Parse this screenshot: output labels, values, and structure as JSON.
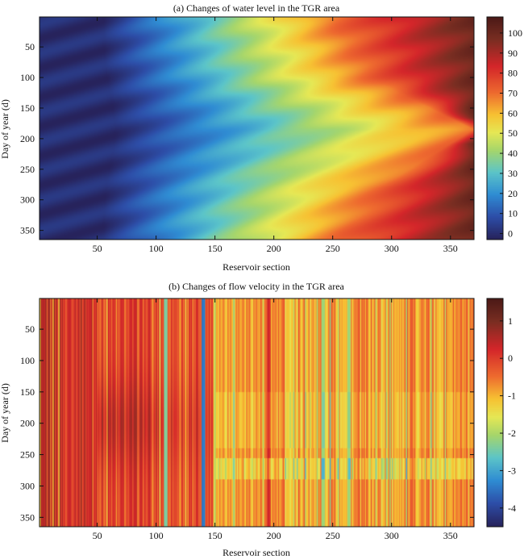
{
  "chart_data": [
    {
      "type": "heatmap",
      "title": "(a) Changes of water level in the TGR area",
      "xlabel": "Reservoir section",
      "ylabel": "Day of year (d)",
      "xlim": [
        1,
        370
      ],
      "ylim": [
        1,
        365
      ],
      "xticks": [
        50,
        100,
        150,
        200,
        250,
        300,
        350
      ],
      "yticks": [
        50,
        100,
        150,
        200,
        250,
        300,
        350
      ],
      "colorbar": {
        "min": -3,
        "max": 108,
        "ticks": [
          0,
          10,
          20,
          30,
          40,
          50,
          60,
          70,
          80,
          90,
          100
        ],
        "colormap": "jet-dark"
      },
      "value_field": {
        "description": "water level increases from upstream to downstream sections, spreading furthest around mid-year",
        "front_profile": [
          {
            "day": 1,
            "boundary_section": 250
          },
          {
            "day": 100,
            "boundary_section": 280
          },
          {
            "day": 185,
            "boundary_section": 370
          },
          {
            "day": 280,
            "boundary_section": 290
          },
          {
            "day": 365,
            "boundary_section": 255
          }
        ]
      }
    },
    {
      "type": "heatmap",
      "title": "(b) Changes of flow velocity  in the TGR area",
      "xlabel": "Reservoir section",
      "ylabel": "Day of year (d)",
      "xlim": [
        1,
        370
      ],
      "ylim": [
        1,
        365
      ],
      "xticks": [
        50,
        100,
        150,
        200,
        250,
        300,
        350
      ],
      "yticks": [
        50,
        100,
        150,
        200,
        250,
        300,
        350
      ],
      "colorbar": {
        "min": -4.5,
        "max": 1.6,
        "ticks": [
          1,
          0,
          -1,
          -2,
          -3,
          -4
        ],
        "colormap": "jet-dark"
      },
      "value_field": {
        "description": "flow velocity mostly near 0 to -1 with vertical striations; lower values near sections 100-110, 140, 180-270",
        "notable_bands": [
          {
            "section": 108,
            "value": -3.0
          },
          {
            "section": 140,
            "value": -4.3
          },
          {
            "section": 196,
            "value": 0.5
          },
          {
            "section": 242,
            "value": -2.5
          },
          {
            "section": 264,
            "value": -2.3
          }
        ]
      }
    }
  ]
}
